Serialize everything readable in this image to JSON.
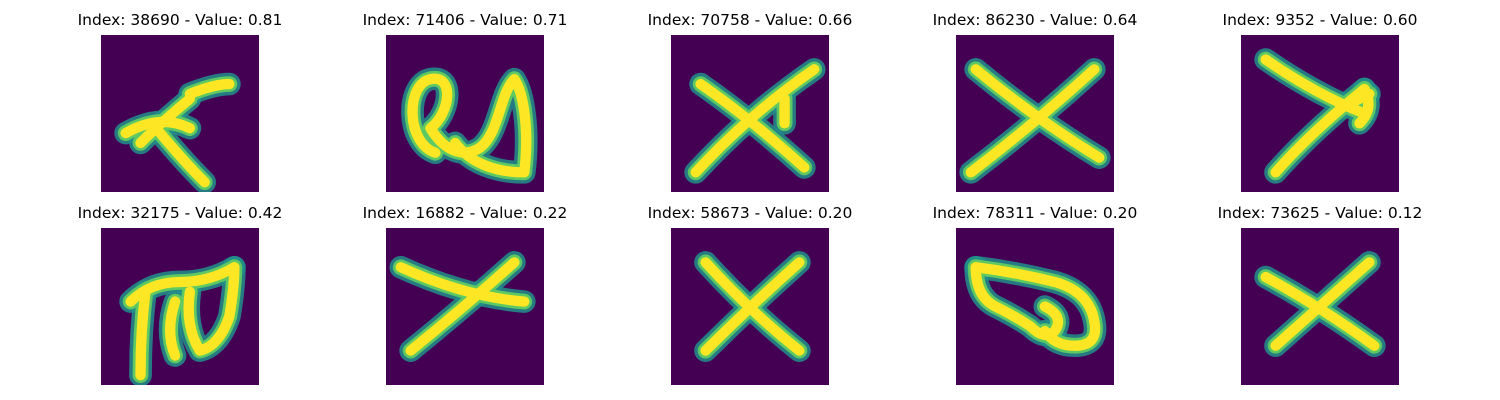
{
  "figure": {
    "panels": [
      {
        "index": "38690",
        "value": "0.81",
        "title": "Index: 38690 - Value: 0.81",
        "glyph": "x-shape-icon",
        "strokes": [
          "M 5 20 Q 12 16 18 19",
          "M 18 13 Q 12 18 8 22",
          "M 12 20 Q 17 26 21 30",
          "M 18 12 Q 23 10 26 10"
        ]
      },
      {
        "index": "71406",
        "value": "0.71",
        "title": "Index: 71406 - Value: 0.71",
        "glyph": "loop-scribble-icon",
        "strokes": [
          "M 10 24 C 4 22 4 10 9 9 C 14 8 13 16 9 19 C 12 24 16 25 19 23 C 23 20 23 12 26 9 C 28 12 29 20 28 28 C 22 28 17 26 14 22"
        ]
      },
      {
        "index": "70758",
        "value": "0.66",
        "title": "Index: 70758 - Value: 0.66",
        "glyph": "x-shape-icon",
        "strokes": [
          "M 5 28 Q 16 16 29 7",
          "M 6 10 Q 16 17 27 27",
          "M 23 13 L 23 18"
        ]
      },
      {
        "index": "86230",
        "value": "0.64",
        "title": "Index: 86230 - Value: 0.64",
        "glyph": "x-shape-icon",
        "strokes": [
          "M 3 28 Q 16 18 28 7",
          "M 4 7 Q 16 17 29 25"
        ]
      },
      {
        "index": "9352",
        "value": "0.60",
        "title": "Index: 9352 - Value: 0.60",
        "glyph": "arrow-scribble-icon",
        "strokes": [
          "M 7 28 Q 14 20 25 11",
          "M 5 5 Q 15 12 25 16",
          "M 20 15 L 26 12",
          "M 25 11 Q 27 15 24 18"
        ]
      },
      {
        "index": "32175",
        "value": "0.42",
        "title": "Index: 32175 - Value: 0.42",
        "glyph": "letter-m-scribble-icon",
        "strokes": [
          "M 6 15 Q 10 11 16 11 Q 22 11 27 8",
          "M 9 13 Q 8 21 8 30",
          "M 15 15 Q 13 21 15 26",
          "M 18 13 Q 17 20 20 25 Q 24 24 26 18 Q 27 12 27 8"
        ]
      },
      {
        "index": "16882",
        "value": "0.22",
        "title": "Index: 16882 - Value: 0.22",
        "glyph": "x-shape-icon",
        "strokes": [
          "M 3 8 Q 16 14 28 15",
          "M 26 7 Q 16 16 5 25"
        ]
      },
      {
        "index": "58673",
        "value": "0.20",
        "title": "Index: 58673 - Value: 0.20",
        "glyph": "x-shape-icon",
        "strokes": [
          "M 7 7 Q 16 17 26 25",
          "M 26 7 Q 16 16 7 25"
        ]
      },
      {
        "index": "78311",
        "value": "0.20",
        "title": "Index: 78311 - Value: 0.20",
        "glyph": "loop-scribble-icon",
        "strokes": [
          "M 4 8 Q 4 14 8 16 Q 12 18 15 20 Q 18 23 20 21 Q 22 18 18 16",
          "M 4 8 Q 12 9 20 11 Q 27 13 28 19 Q 29 24 24 24 Q 20 24 18 21"
        ]
      },
      {
        "index": "73625",
        "value": "0.12",
        "title": "Index: 73625 - Value: 0.12",
        "glyph": "x-shape-icon",
        "strokes": [
          "M 5 10 Q 16 16 27 24",
          "M 26 7 Q 17 15 7 24"
        ]
      }
    ],
    "colors": {
      "background": "#440154",
      "stroke_glow": "#21918c",
      "stroke_mid": "#5ec962",
      "stroke_core": "#fde725",
      "text": "#000000"
    }
  }
}
